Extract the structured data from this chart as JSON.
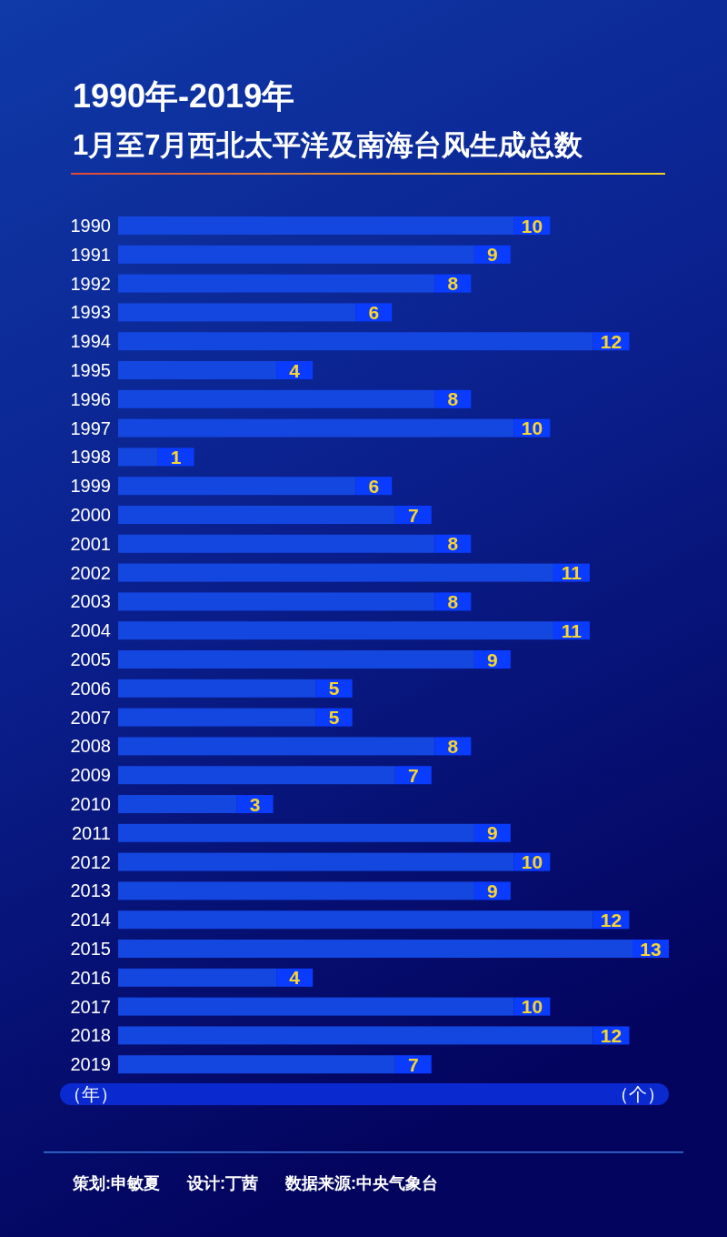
{
  "chart_data": {
    "type": "bar",
    "orientation": "horizontal",
    "title": "1990年-2019年",
    "subtitle": "1月至7月西北太平洋及南海台风生成总数",
    "ylabel": "（年）",
    "xlabel": "（个）",
    "categories": [
      "1990",
      "1991",
      "1992",
      "1993",
      "1994",
      "1995",
      "1996",
      "1997",
      "1998",
      "1999",
      "2000",
      "2001",
      "2002",
      "2003",
      "2004",
      "2005",
      "2006",
      "2007",
      "2008",
      "2009",
      "2010",
      "2011",
      "2012",
      "2013",
      "2014",
      "2015",
      "2016",
      "2017",
      "2018",
      "2019"
    ],
    "values": [
      10,
      9,
      8,
      6,
      12,
      4,
      8,
      10,
      1,
      6,
      7,
      8,
      11,
      8,
      11,
      9,
      5,
      5,
      8,
      7,
      3,
      9,
      10,
      9,
      12,
      13,
      4,
      10,
      12,
      7
    ],
    "color": "#1446e0",
    "data_labels": true,
    "annotations": [
      "策划:申敏夏",
      "设计:丁茜",
      "数据来源:中央气象台"
    ]
  }
}
